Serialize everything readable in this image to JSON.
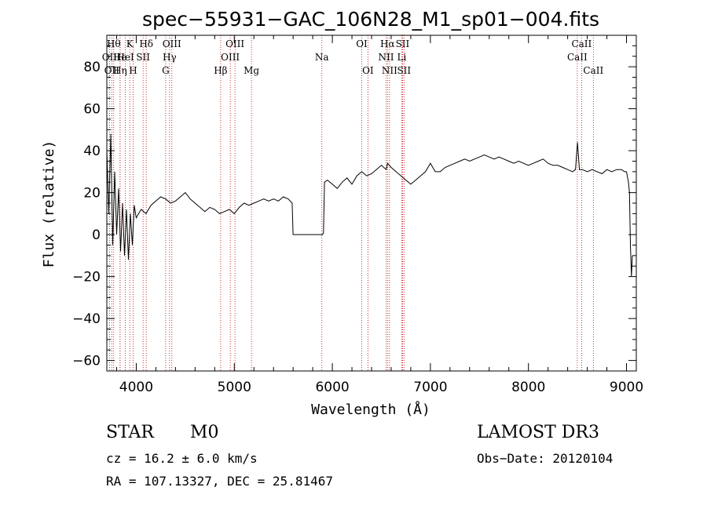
{
  "chart_data": {
    "type": "line",
    "title": "spec−55931−GAC_106N28_M1_sp01−004.fits",
    "xlabel": "Wavelength (Å)",
    "ylabel": "Flux (relative)",
    "xlim": [
      3700,
      9100
    ],
    "ylim": [
      -65,
      95
    ],
    "xticks": [
      {
        "value": 4000,
        "label": "4000"
      },
      {
        "value": 5000,
        "label": "5000"
      },
      {
        "value": 6000,
        "label": "6000"
      },
      {
        "value": 7000,
        "label": "7000"
      },
      {
        "value": 8000,
        "label": "8000"
      },
      {
        "value": 9000,
        "label": "9000"
      }
    ],
    "yticks": [
      {
        "value": -60,
        "label": "−60"
      },
      {
        "value": -40,
        "label": "−40"
      },
      {
        "value": -20,
        "label": "−20"
      },
      {
        "value": 0,
        "label": "0"
      },
      {
        "value": 20,
        "label": "20"
      },
      {
        "value": 40,
        "label": "40"
      },
      {
        "value": 60,
        "label": "60"
      },
      {
        "value": 80,
        "label": "80"
      }
    ],
    "series": [
      {
        "name": "flux",
        "x": [
          3700,
          3720,
          3740,
          3760,
          3780,
          3800,
          3820,
          3840,
          3860,
          3880,
          3900,
          3920,
          3940,
          3960,
          3980,
          4000,
          4050,
          4100,
          4150,
          4200,
          4250,
          4300,
          4350,
          4400,
          4450,
          4500,
          4550,
          4600,
          4650,
          4700,
          4750,
          4800,
          4850,
          4900,
          4950,
          5000,
          5050,
          5100,
          5150,
          5200,
          5250,
          5300,
          5350,
          5400,
          5450,
          5500,
          5550,
          5590,
          5600,
          5700,
          5800,
          5900,
          5910,
          5920,
          5950,
          6000,
          6050,
          6100,
          6150,
          6200,
          6250,
          6300,
          6350,
          6400,
          6450,
          6500,
          6550,
          6563,
          6600,
          6650,
          6700,
          6750,
          6800,
          6850,
          6900,
          6950,
          7000,
          7050,
          7100,
          7150,
          7200,
          7250,
          7300,
          7350,
          7400,
          7450,
          7500,
          7550,
          7600,
          7650,
          7700,
          7750,
          7800,
          7850,
          7900,
          7950,
          8000,
          8050,
          8100,
          8150,
          8200,
          8250,
          8300,
          8350,
          8400,
          8450,
          8480,
          8500,
          8520,
          8550,
          8600,
          8650,
          8700,
          8750,
          8800,
          8850,
          8900,
          8950,
          8980,
          9000,
          9020,
          9030,
          9040,
          9050,
          9060
        ],
        "y": [
          40,
          10,
          48,
          -5,
          30,
          0,
          22,
          -8,
          15,
          -10,
          12,
          -12,
          10,
          -5,
          14,
          8,
          12,
          10,
          14,
          16,
          18,
          17,
          15,
          16,
          18,
          20,
          17,
          15,
          13,
          11,
          13,
          12,
          10,
          11,
          12,
          10,
          13,
          15,
          14,
          15,
          16,
          17,
          16,
          17,
          16,
          18,
          17,
          15,
          0,
          0,
          0,
          0,
          1,
          25,
          26,
          24,
          22,
          25,
          27,
          24,
          28,
          30,
          28,
          29,
          31,
          33,
          31,
          34,
          32,
          30,
          28,
          26,
          24,
          26,
          28,
          30,
          34,
          30,
          30,
          32,
          33,
          34,
          35,
          36,
          35,
          36,
          37,
          38,
          37,
          36,
          37,
          36,
          35,
          34,
          35,
          34,
          33,
          34,
          35,
          36,
          34,
          33,
          33,
          32,
          31,
          30,
          31,
          44,
          31,
          31,
          30,
          31,
          30,
          29,
          31,
          30,
          31,
          31,
          30,
          30,
          25,
          20,
          -5,
          -20,
          -10
        ]
      }
    ],
    "lines": [
      {
        "wavelength": 3727,
        "label": "OII",
        "row": 1
      },
      {
        "wavelength": 3750,
        "label": "OII",
        "row": 2
      },
      {
        "wavelength": 3770,
        "label": "Hθ",
        "row": 0
      },
      {
        "wavelength": 3835,
        "label": "He",
        "row": 1
      },
      {
        "wavelength": 3835,
        "label": "Hη",
        "row": 2
      },
      {
        "wavelength": 3889,
        "label": "HeI",
        "row": 1
      },
      {
        "wavelength": 3934,
        "label": "K",
        "row": 0
      },
      {
        "wavelength": 3968,
        "label": "H",
        "row": 2
      },
      {
        "wavelength": 4070,
        "label": "SII",
        "row": 1
      },
      {
        "wavelength": 4102,
        "label": "Hδ",
        "row": 0
      },
      {
        "wavelength": 4300,
        "label": "G",
        "row": 2
      },
      {
        "wavelength": 4340,
        "label": "Hγ",
        "row": 1
      },
      {
        "wavelength": 4363,
        "label": "OIII",
        "row": 0
      },
      {
        "wavelength": 4861,
        "label": "Hβ",
        "row": 2
      },
      {
        "wavelength": 4959,
        "label": "OIII",
        "row": 1
      },
      {
        "wavelength": 5007,
        "label": "OIII",
        "row": 0
      },
      {
        "wavelength": 5175,
        "label": "Mg",
        "row": 2
      },
      {
        "wavelength": 5893,
        "label": "Na",
        "row": 1
      },
      {
        "wavelength": 6300,
        "label": "OI",
        "row": 0
      },
      {
        "wavelength": 6363,
        "label": "OI",
        "row": 2
      },
      {
        "wavelength": 6548,
        "label": "NII",
        "row": 1
      },
      {
        "wavelength": 6563,
        "label": "Hα",
        "row": 0
      },
      {
        "wavelength": 6583,
        "label": "NII",
        "row": 2
      },
      {
        "wavelength": 6708,
        "label": "Li",
        "row": 1
      },
      {
        "wavelength": 6716,
        "label": "SII",
        "row": 0
      },
      {
        "wavelength": 6731,
        "label": "SII",
        "row": 2
      },
      {
        "wavelength": 8498,
        "label": "CaII",
        "row": 1
      },
      {
        "wavelength": 8542,
        "label": "CaII",
        "row": 0
      },
      {
        "wavelength": 8662,
        "label": "CaII",
        "row": 2
      }
    ]
  },
  "info": {
    "class": "STAR",
    "subclass": "M0",
    "survey": "LAMOST DR3",
    "cz": "cz = 16.2 ± 6.0 km/s",
    "obs_date": "Obs−Date: 20120104",
    "radec": "RA = 107.13327, DEC =  25.81467"
  },
  "colors": {
    "spectrum": "#000000",
    "line_markers": "#c00000",
    "axes": "#000000"
  }
}
